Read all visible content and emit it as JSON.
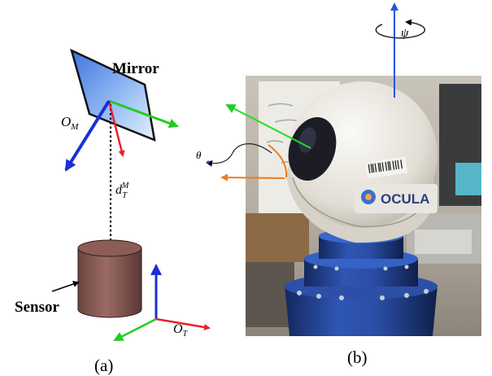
{
  "panel_a": {
    "mirror_label": "Mirror",
    "mirror_frame_label": "O",
    "mirror_frame_sub": "M",
    "distance_label": "d",
    "distance_sub": "T",
    "distance_sup": "M",
    "sensor_label": "Sensor",
    "sensor_frame_label": "O",
    "sensor_frame_sub": "T",
    "caption": "(a)",
    "colors": {
      "mirror_fill": "#6f9ff0",
      "mirror_edge": "#111111",
      "sensor_body": "#8a5a55",
      "axis_red": "#e8202a",
      "axis_green": "#22cc22",
      "axis_blue": "#1a2fd6"
    }
  },
  "panel_b": {
    "yaw_label": "ψ",
    "pitch_label": "θ",
    "badge_text": "OCULA",
    "caption": "(b)",
    "colors": {
      "yaw_axis": "#2a55e0",
      "pitch_arc": "#f07a1a",
      "beam": "#22dd22",
      "base": "#1e3b8c",
      "dome": "#e9e6df"
    }
  }
}
